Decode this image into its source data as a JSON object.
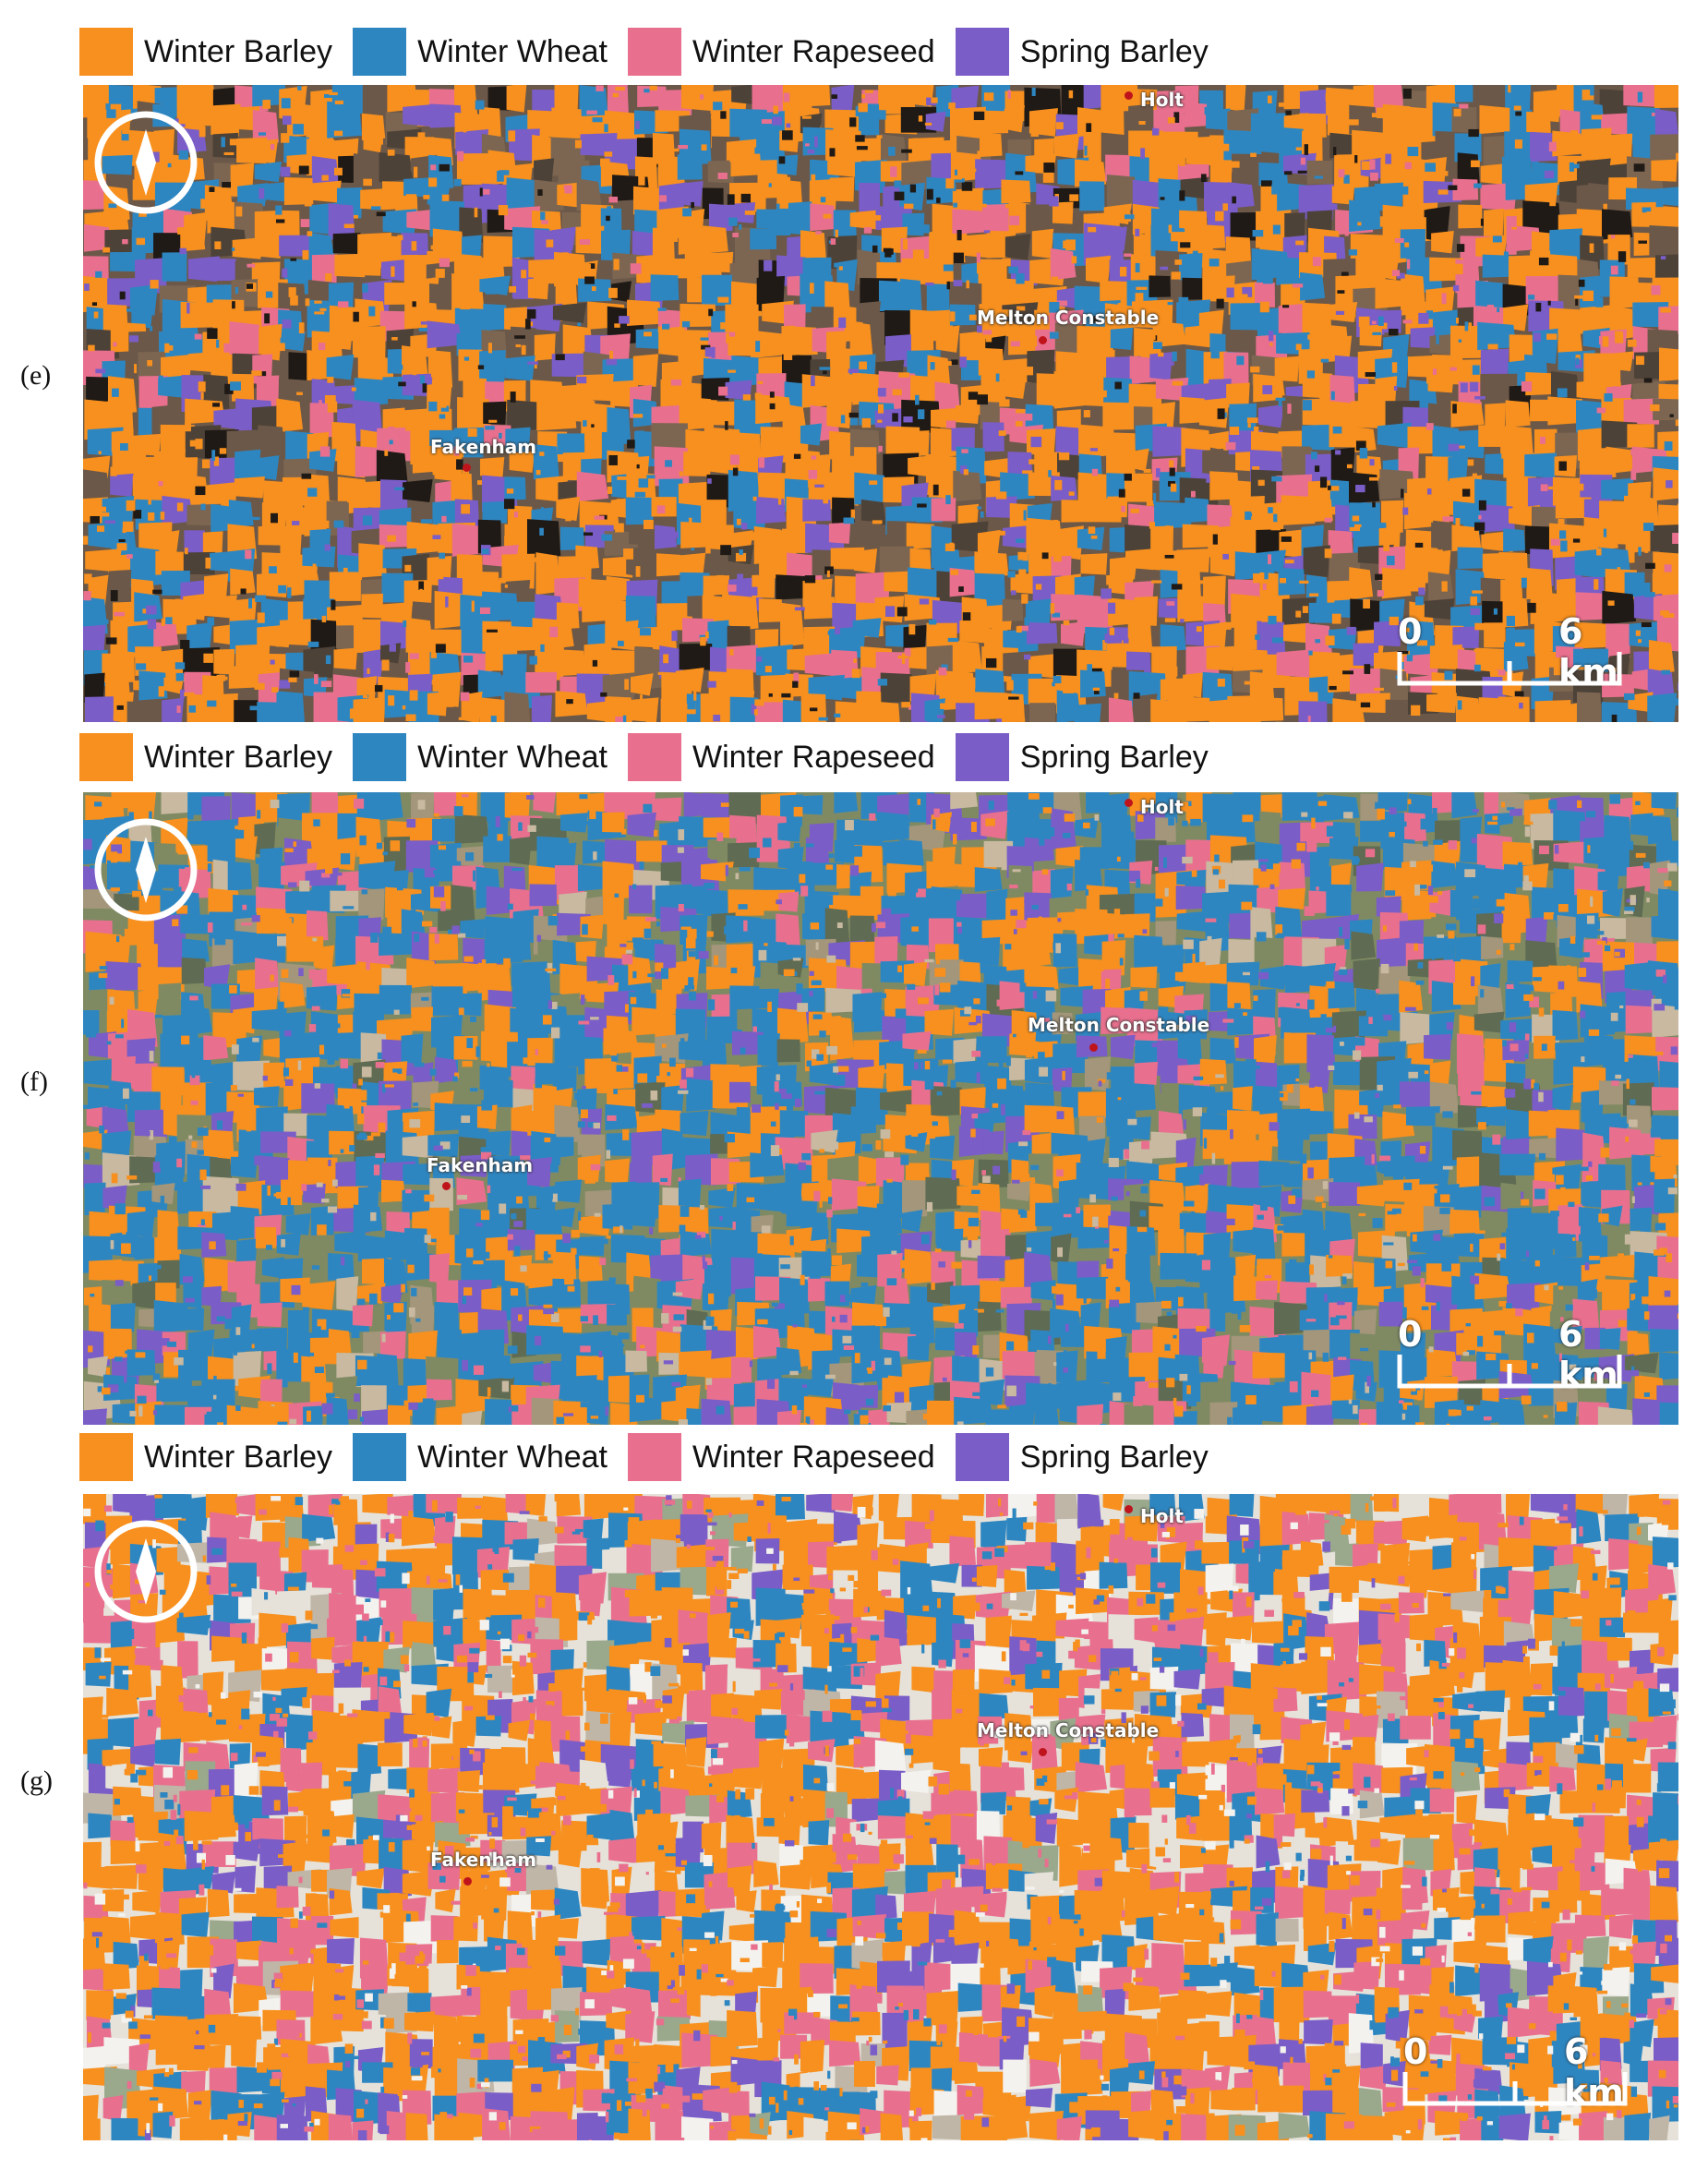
{
  "legend": [
    {
      "label": "Winter Barley",
      "color": "#F7901E"
    },
    {
      "label": "Winter Wheat",
      "color": "#2E86C1"
    },
    {
      "label": "Winter Rapeseed",
      "color": "#E8708E"
    },
    {
      "label": "Spring Barley",
      "color": "#7A5DC7"
    }
  ],
  "panels": [
    {
      "label": "(e)",
      "legend": [
        "Winter Barley",
        "Winter Wheat",
        "Winter Rapeseed",
        "Spring Barley"
      ],
      "towns": {
        "holt": "Holt",
        "melton": "Melton Constable",
        "fakenham": "Fakenham"
      },
      "scale": {
        "start": "0",
        "end": "6 km"
      },
      "class_mix": {
        "Winter Barley": 0.46,
        "Winter Wheat": 0.2,
        "Winter Rapeseed": 0.1,
        "Spring Barley": 0.09,
        "background": 0.15
      },
      "background_colors": [
        "#6b5848",
        "#7c6652",
        "#4d4238",
        "#1f1a16"
      ]
    },
    {
      "label": "(f)",
      "legend": [
        "Winter Barley",
        "Winter Wheat",
        "Winter Rapeseed",
        "Spring Barley"
      ],
      "towns": {
        "holt": "Holt",
        "melton": "Melton Constable",
        "fakenham": "Fakenham"
      },
      "scale": {
        "start": "0",
        "end": "6 km"
      },
      "class_mix": {
        "Winter Barley": 0.26,
        "Winter Wheat": 0.38,
        "Winter Rapeseed": 0.1,
        "Spring Barley": 0.12,
        "background": 0.14
      },
      "background_colors": [
        "#7f8a63",
        "#a3967a",
        "#5f6b52",
        "#c8b9a0"
      ]
    },
    {
      "label": "(g)",
      "legend": [
        "Winter Barley",
        "Winter Wheat",
        "Winter Rapeseed",
        "Spring Barley"
      ],
      "towns": {
        "holt": "Holt",
        "melton": "Melton Constable",
        "fakenham": "Fakenham"
      },
      "scale": {
        "start": "0",
        "end": "6 km"
      },
      "class_mix": {
        "Winter Barley": 0.44,
        "Winter Wheat": 0.15,
        "Winter Rapeseed": 0.22,
        "Spring Barley": 0.07,
        "background": 0.12
      },
      "background_colors": [
        "#e6e2da",
        "#9aa88c",
        "#bfb6a8",
        "#f4f2ee"
      ]
    }
  ]
}
